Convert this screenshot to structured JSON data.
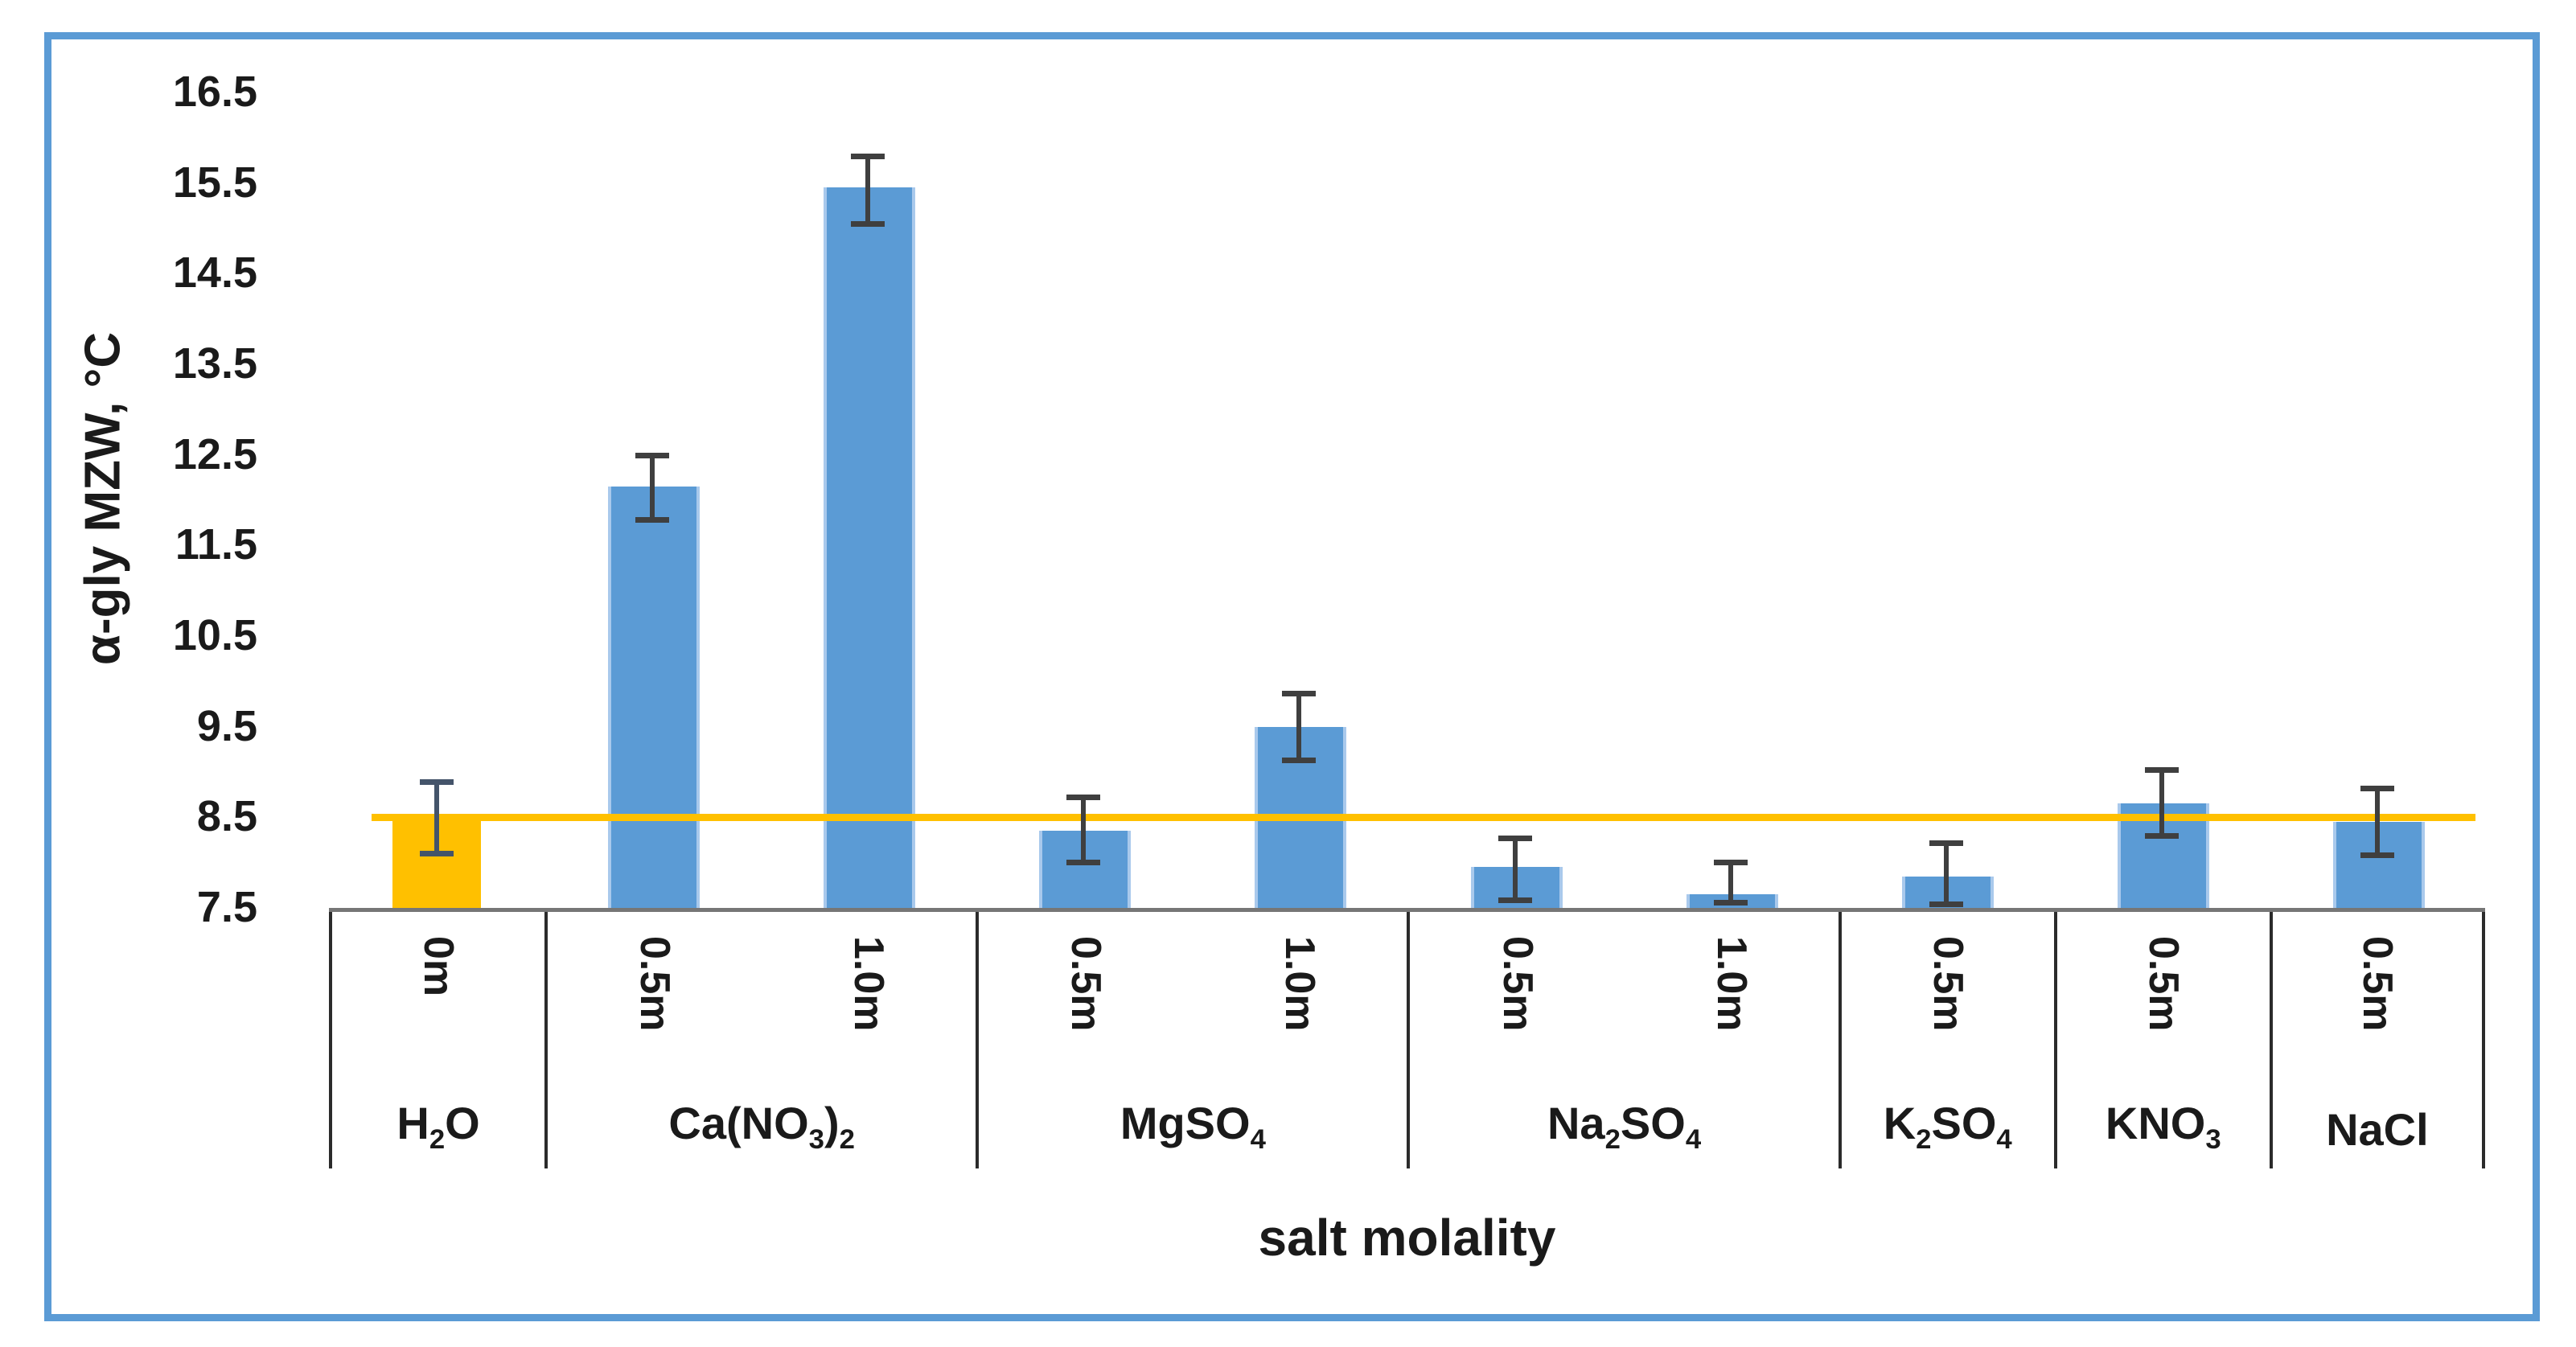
{
  "chart_data": {
    "type": "bar",
    "title": "",
    "y_axis_title": "α-gly MZW, °C",
    "x_axis_title": "salt molality",
    "ylim": [
      7.5,
      16.5
    ],
    "y_ticks": [
      7.5,
      8.5,
      9.5,
      10.5,
      11.5,
      12.5,
      13.5,
      14.5,
      15.5,
      16.5
    ],
    "grid": "off",
    "legend": "none",
    "reference_line": {
      "value": 8.5,
      "color": "#FFC000",
      "meaning": "water control level"
    },
    "colors": {
      "bar_blue": "#5B9BD5",
      "bar_blue_edge": "#A9C9EC",
      "bar_orange": "#FFC000",
      "error_on_blue": "#3F3F3F",
      "error_on_orange": "#44546A",
      "frame_border": "#5B9BD5",
      "axis_line": "#767676",
      "table_border": "#2B2B2B"
    },
    "groups": [
      {
        "id": "h2o",
        "salt_text": "H2O",
        "salt_segments": [
          {
            "t": "H"
          },
          {
            "s": "2"
          },
          {
            "t": "O"
          }
        ],
        "bars": [
          {
            "molality": "0m",
            "value": 8.5,
            "err_up": 0.42,
            "err_down": 0.43,
            "color": "#FFC000",
            "err_color": "#44546A"
          }
        ]
      },
      {
        "id": "ca-no3-2",
        "salt_text": "Ca(NO3)2",
        "salt_segments": [
          {
            "t": "Ca(NO"
          },
          {
            "s": "3"
          },
          {
            "t": ")"
          },
          {
            "s": "2"
          }
        ],
        "bars": [
          {
            "molality": "0.5m",
            "value": 12.15,
            "err_up": 0.37,
            "err_down": 0.4,
            "color": "#5B9BD5",
            "err_color": "#3F3F3F"
          },
          {
            "molality": "1.0m",
            "value": 15.45,
            "err_up": 0.38,
            "err_down": 0.43,
            "color": "#5B9BD5",
            "err_color": "#3F3F3F"
          }
        ]
      },
      {
        "id": "mgso4",
        "salt_text": "MgSO4",
        "salt_segments": [
          {
            "t": "MgSO"
          },
          {
            "s": "4"
          }
        ],
        "bars": [
          {
            "molality": "0.5m",
            "value": 8.35,
            "err_up": 0.4,
            "err_down": 0.38,
            "color": "#5B9BD5",
            "err_color": "#3F3F3F"
          },
          {
            "molality": "1.0m",
            "value": 9.5,
            "err_up": 0.4,
            "err_down": 0.4,
            "color": "#5B9BD5",
            "err_color": "#3F3F3F"
          }
        ]
      },
      {
        "id": "na2so4",
        "salt_text": "Na2SO4",
        "salt_segments": [
          {
            "t": "Na"
          },
          {
            "s": "2"
          },
          {
            "t": "SO"
          },
          {
            "s": "4"
          }
        ],
        "bars": [
          {
            "molality": "0.5m",
            "value": 7.95,
            "err_up": 0.35,
            "err_down": 0.4,
            "color": "#5B9BD5",
            "err_color": "#3F3F3F"
          },
          {
            "molality": "1.0m",
            "value": 7.65,
            "err_up": 0.38,
            "err_down": 0.12,
            "color": "#5B9BD5",
            "err_color": "#3F3F3F"
          }
        ]
      },
      {
        "id": "k2so4",
        "salt_text": "K2SO4",
        "salt_segments": [
          {
            "t": "K"
          },
          {
            "s": "2"
          },
          {
            "t": "SO"
          },
          {
            "s": "4"
          }
        ],
        "bars": [
          {
            "molality": "0.5m",
            "value": 7.85,
            "err_up": 0.4,
            "err_down": 0.34,
            "color": "#5B9BD5",
            "err_color": "#3F3F3F"
          }
        ]
      },
      {
        "id": "kno3",
        "salt_text": "KNO3",
        "salt_segments": [
          {
            "t": "KNO"
          },
          {
            "s": "3"
          }
        ],
        "bars": [
          {
            "molality": "0.5m",
            "value": 8.65,
            "err_up": 0.4,
            "err_down": 0.39,
            "color": "#5B9BD5",
            "err_color": "#3F3F3F"
          }
        ]
      },
      {
        "id": "nacl",
        "salt_text": "NaCl",
        "salt_segments": [
          {
            "t": "NaCl"
          }
        ],
        "bars": [
          {
            "molality": "0.5m",
            "value": 8.45,
            "err_up": 0.4,
            "err_down": 0.4,
            "color": "#5B9BD5",
            "err_color": "#3F3F3F"
          }
        ]
      }
    ]
  }
}
